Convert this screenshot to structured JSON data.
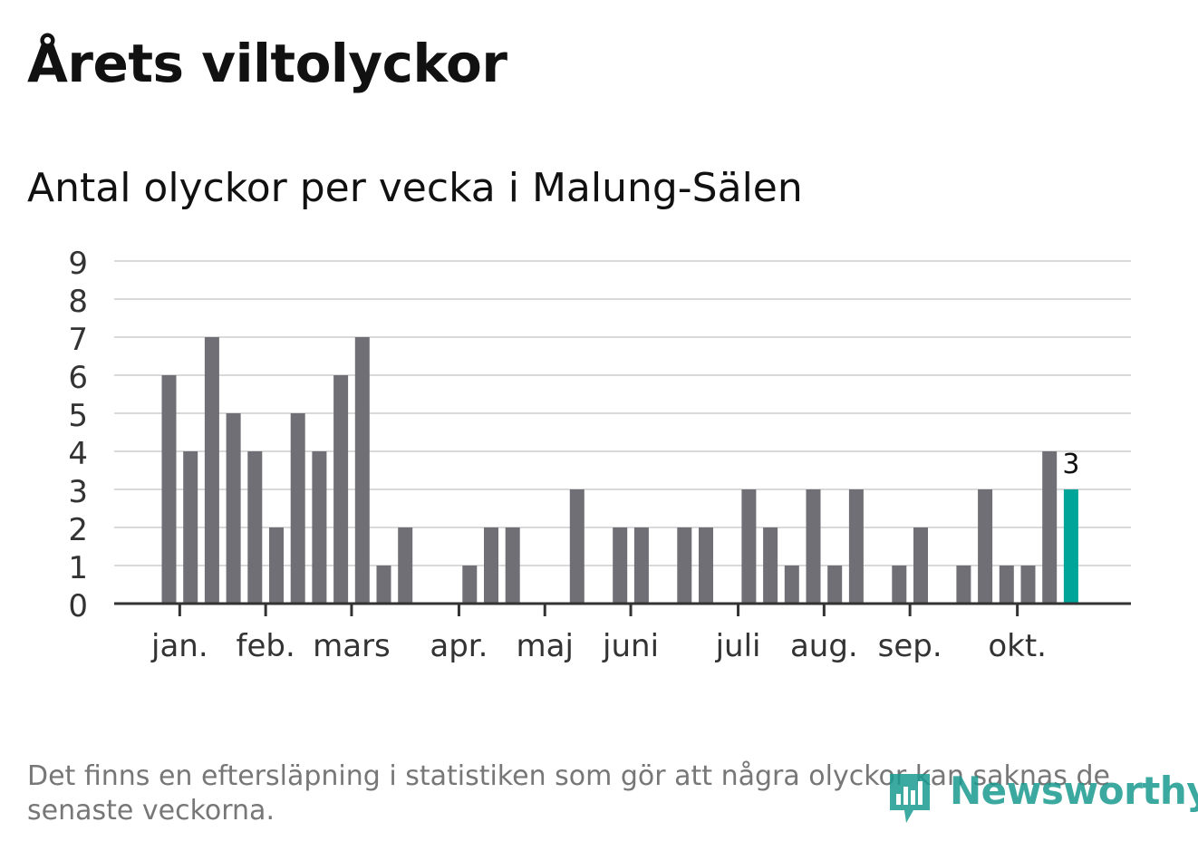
{
  "header": {
    "title": "Årets viltolyckor",
    "subtitle": "Antal olyckor per vecka i Malung-Sälen"
  },
  "footer": {
    "note": "Det finns en eftersläpning i statistiken som gör att några olyckor kan saknas de senaste veckorna.",
    "brand": "Newsworthy"
  },
  "colors": {
    "bar": "#6f6f75",
    "highlight": "#00a59a",
    "grid": "#d9d9d9",
    "axis": "#333333"
  },
  "chart_data": {
    "type": "bar",
    "title": "Antal olyckor per vecka i Malung-Sälen",
    "xlabel": "",
    "ylabel": "",
    "ylim": [
      0,
      9
    ],
    "yticks": [
      0,
      1,
      2,
      3,
      4,
      5,
      6,
      7,
      8,
      9
    ],
    "grid": true,
    "weeks": [
      1,
      2,
      3,
      4,
      5,
      6,
      7,
      8,
      9,
      10,
      11,
      12,
      13,
      14,
      15,
      16,
      17,
      18,
      19,
      20,
      21,
      22,
      23,
      24,
      25,
      26,
      27,
      28,
      29,
      30,
      31,
      32,
      33,
      34,
      35,
      36,
      37,
      38,
      39,
      40,
      41,
      42
    ],
    "values": [
      6,
      4,
      7,
      5,
      4,
      2,
      5,
      4,
      6,
      7,
      1,
      2,
      0,
      0,
      1,
      2,
      2,
      0,
      0,
      3,
      0,
      2,
      2,
      0,
      2,
      2,
      0,
      3,
      2,
      1,
      3,
      1,
      3,
      0,
      1,
      2,
      0,
      1,
      3,
      1,
      1,
      4
    ],
    "highlight": {
      "week": 43,
      "value": 3,
      "label": "3"
    },
    "month_ticks": [
      {
        "label": "jan.",
        "week": 1.5
      },
      {
        "label": "feb.",
        "week": 5.5
      },
      {
        "label": "mars",
        "week": 9.5
      },
      {
        "label": "apr.",
        "week": 14.5
      },
      {
        "label": "maj",
        "week": 18.5
      },
      {
        "label": "juni",
        "week": 22.5
      },
      {
        "label": "juli",
        "week": 27.5
      },
      {
        "label": "aug.",
        "week": 31.5
      },
      {
        "label": "sep.",
        "week": 35.5
      },
      {
        "label": "okt.",
        "week": 40.5
      }
    ]
  }
}
